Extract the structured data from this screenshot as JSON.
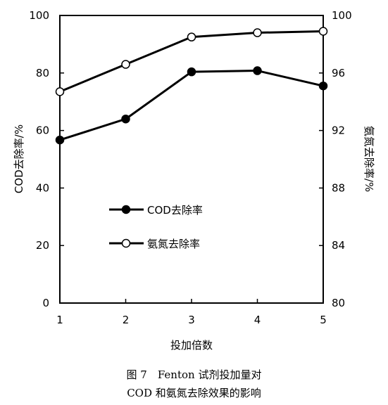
{
  "chart_data": {
    "type": "line",
    "xlabel": "投加倍数",
    "ylabel_left": "COD去除率/%",
    "ylabel_right": "氨氮去除率/%",
    "x": [
      1,
      2,
      3,
      4,
      5
    ],
    "x_ticks": [
      "1",
      "2",
      "3",
      "4",
      "5"
    ],
    "ylim_left": [
      0,
      100
    ],
    "yticks_left": [
      "0",
      "20",
      "40",
      "60",
      "80",
      "100"
    ],
    "ylim_right": [
      80,
      100
    ],
    "yticks_right": [
      "80",
      "84",
      "88",
      "92",
      "96",
      "100"
    ],
    "grid": false,
    "legend_position": "center-left",
    "series": [
      {
        "name": "COD去除率",
        "axis": "left",
        "marker": "filled-circle",
        "values": [
          56.7,
          64.0,
          80.4,
          80.8,
          75.5
        ]
      },
      {
        "name": "氨氮去除率",
        "axis": "right",
        "marker": "open-circle",
        "values": [
          94.7,
          96.6,
          98.5,
          98.8,
          98.9
        ]
      }
    ]
  },
  "caption": {
    "line1": "图 7　Fenton 试剂投加量对",
    "line2": "COD 和氨氮去除效果的影响"
  }
}
